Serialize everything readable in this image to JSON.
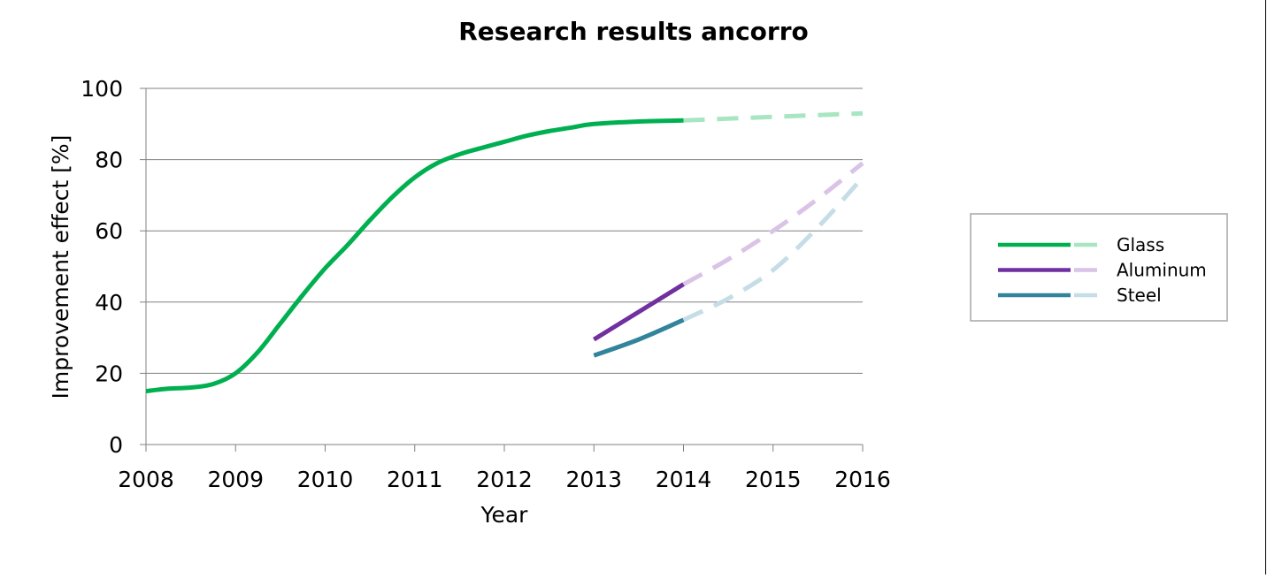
{
  "chart_data": {
    "type": "line",
    "title": "Research results ancorro",
    "xlabel": "Year",
    "ylabel": "Improvement effect [%]",
    "xlim": [
      2008,
      2016
    ],
    "ylim": [
      0,
      100
    ],
    "x_ticks": [
      "2008",
      "2009",
      "2010",
      "2011",
      "2012",
      "2013",
      "2014",
      "2015",
      "2016"
    ],
    "y_ticks": [
      "0",
      "20",
      "40",
      "60",
      "80",
      "100"
    ],
    "grid": true,
    "legend_position": "right",
    "series": [
      {
        "name": "Glass",
        "color": "#00b050",
        "forecast_color": "#a8e6c2",
        "actual": [
          [
            2008,
            15
          ],
          [
            2008.25,
            15.7
          ],
          [
            2008.5,
            16
          ],
          [
            2008.75,
            17
          ],
          [
            2009,
            20
          ],
          [
            2009.25,
            26
          ],
          [
            2009.5,
            34
          ],
          [
            2009.75,
            42
          ],
          [
            2010,
            49.5
          ],
          [
            2010.25,
            56
          ],
          [
            2010.5,
            63
          ],
          [
            2010.75,
            69.5
          ],
          [
            2011,
            75
          ],
          [
            2011.25,
            79
          ],
          [
            2011.5,
            81.5
          ],
          [
            2011.75,
            83.3
          ],
          [
            2012,
            85
          ],
          [
            2012.25,
            86.7
          ],
          [
            2012.5,
            88
          ],
          [
            2012.75,
            89
          ],
          [
            2013,
            90
          ],
          [
            2013.5,
            90.7
          ],
          [
            2014,
            91
          ]
        ],
        "forecast": [
          [
            2014,
            91
          ],
          [
            2015,
            92
          ],
          [
            2016,
            93
          ]
        ]
      },
      {
        "name": "Aluminum",
        "color": "#7030a0",
        "forecast_color": "#d9c3e6",
        "actual": [
          [
            2013,
            29.5
          ],
          [
            2014,
            45
          ]
        ],
        "forecast": [
          [
            2014,
            45
          ],
          [
            2014.5,
            52
          ],
          [
            2015,
            60
          ],
          [
            2015.5,
            69
          ],
          [
            2016,
            79
          ]
        ]
      },
      {
        "name": "Steel",
        "color": "#31849b",
        "forecast_color": "#c5dde6",
        "actual": [
          [
            2013,
            25
          ],
          [
            2013.5,
            29.5
          ],
          [
            2014,
            35
          ]
        ],
        "forecast": [
          [
            2014,
            35
          ],
          [
            2014.5,
            41
          ],
          [
            2015,
            49
          ],
          [
            2015.5,
            61
          ],
          [
            2016,
            75
          ]
        ]
      }
    ]
  }
}
